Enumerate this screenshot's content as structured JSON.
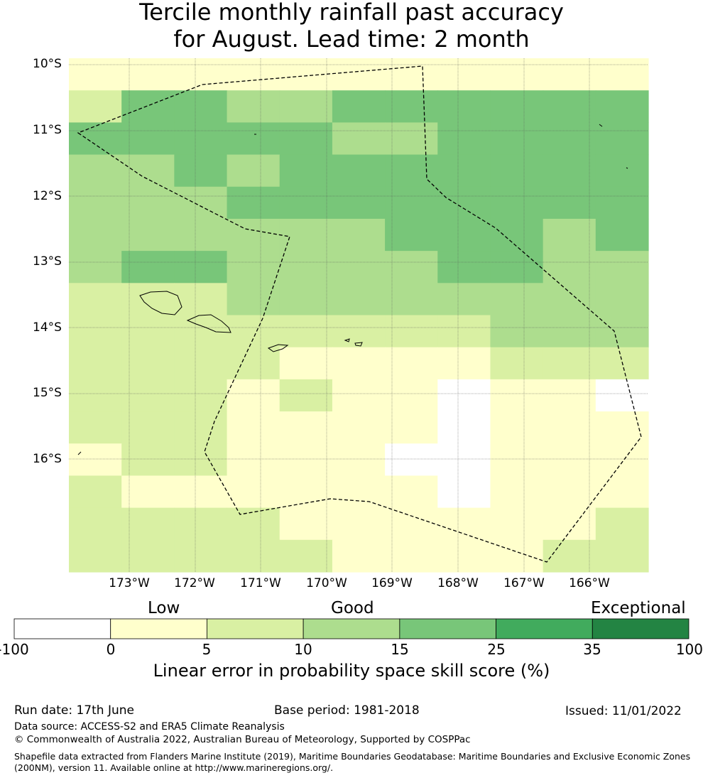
{
  "title_line1": "Tercile monthly rainfall past accuracy",
  "title_line2": "for August. Lead time: 2 month",
  "map": {
    "lat_labels": [
      "10°S",
      "11°S",
      "12°S",
      "13°S",
      "14°S",
      "15°S",
      "16°S"
    ],
    "lon_labels": [
      "173°W",
      "172°W",
      "171°W",
      "170°W",
      "169°W",
      "168°W",
      "167°W",
      "166°W"
    ],
    "grid_rows": [
      "11111111111",
      "24433444444",
      "44444334444",
      "33434444444",
      "33344444444",
      "33333344434",
      "34433334433",
      "22233333333",
      "22222222333",
      "22221111222",
      "22212110110",
      "22211110111",
      "12211100111",
      "21111110111",
      "22221111112",
      "22222111122"
    ],
    "cell_colors": {
      "0": "#ffffff",
      "1": "#ffffcc",
      "2": "#d9f0a3",
      "3": "#addd8e",
      "4": "#78c679"
    }
  },
  "colorbar": {
    "categories": [
      "Low",
      "Good",
      "Exceptional"
    ],
    "ticks": [
      "-100",
      "0",
      "5",
      "10",
      "15",
      "25",
      "35",
      "100"
    ],
    "colors": [
      "#ffffff",
      "#ffffcc",
      "#d9f0a3",
      "#addd8e",
      "#78c679",
      "#41ab5d",
      "#238443"
    ],
    "label": "Linear error in probability space skill score (%)"
  },
  "footer": {
    "run_date": "Run date: 17th June",
    "base_period": "Base period: 1981-2018",
    "issued": "Issued: 11/01/2022",
    "data_source": "Data source: ACCESS-S2 and ERA5 Climate Reanalysis",
    "copyright": "© Commonwealth of Australia 2022, Australian Bureau of Meteorology, Supported by COSPPac",
    "shapefile_line1": "Shapefile data extracted from Flanders Marine Institute (2019), Maritime Boundaries Geodatabase: Maritime Boundaries and Exclusive Economic Zones",
    "shapefile_line2": "(200NM), version 11. Available online at http://www.marineregions.org/."
  }
}
